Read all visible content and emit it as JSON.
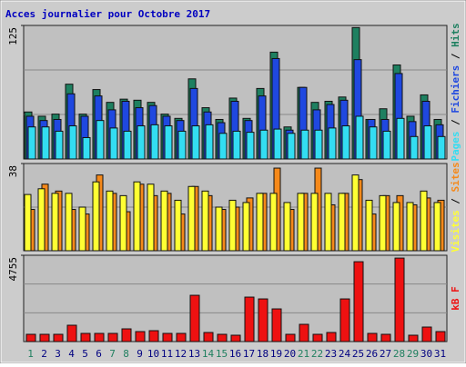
{
  "title": "Acces journalier pour Octobre 2017",
  "categories": [
    "1",
    "2",
    "3",
    "4",
    "5",
    "6",
    "7",
    "8",
    "9",
    "10",
    "11",
    "12",
    "13",
    "14",
    "15",
    "16",
    "17",
    "18",
    "19",
    "20",
    "21",
    "22",
    "23",
    "24",
    "25",
    "26",
    "27",
    "28",
    "29",
    "30",
    "31"
  ],
  "weekend": [
    true,
    false,
    false,
    false,
    false,
    false,
    true,
    true,
    false,
    false,
    false,
    false,
    false,
    true,
    true,
    false,
    false,
    false,
    false,
    false,
    true,
    true,
    false,
    false,
    false,
    false,
    false,
    true,
    true,
    false,
    false
  ],
  "weekend_color": "#208060",
  "weekday_color": "#000080",
  "legend_separator": "/",
  "chart_data": [
    {
      "type": "bar",
      "ylim": [
        0,
        125
      ],
      "yticks": [
        125
      ],
      "grid_divisions": 3,
      "series": [
        {
          "name": "Hits",
          "color": "#1e8060",
          "values": [
            44,
            40,
            42,
            70,
            42,
            65,
            53,
            56,
            55,
            53,
            42,
            38,
            75,
            48,
            37,
            57,
            38,
            66,
            100,
            30,
            67,
            53,
            54,
            58,
            123,
            37,
            47,
            88,
            40,
            60,
            37
          ]
        },
        {
          "name": "Fichiers",
          "color": "#1f48e0",
          "values": [
            40,
            36,
            37,
            61,
            40,
            59,
            46,
            54,
            48,
            50,
            40,
            36,
            66,
            44,
            34,
            54,
            36,
            59,
            94,
            27,
            67,
            46,
            51,
            55,
            93,
            37,
            37,
            80,
            35,
            54,
            32
          ]
        },
        {
          "name": "Pages",
          "color": "#33ddf2",
          "values": [
            30,
            30,
            26,
            31,
            20,
            36,
            29,
            26,
            31,
            32,
            31,
            26,
            31,
            32,
            24,
            26,
            25,
            27,
            28,
            24,
            27,
            27,
            29,
            31,
            40,
            30,
            26,
            38,
            21,
            31,
            21
          ]
        }
      ]
    },
    {
      "type": "bar",
      "ylim": [
        0,
        38
      ],
      "yticks": [
        38
      ],
      "grid_divisions": 2,
      "series": [
        {
          "name": "Sites",
          "color": "#f5891a",
          "values": [
            18,
            29,
            26,
            18,
            16,
            33,
            25,
            17,
            29,
            24,
            25,
            16,
            28,
            24,
            18,
            19,
            23,
            25,
            36,
            18,
            25,
            36,
            20,
            25,
            31,
            16,
            24,
            24,
            20,
            23,
            22
          ]
        },
        {
          "name": "Visites",
          "color": "#ffff33",
          "values": [
            24.5,
            27,
            25,
            25,
            19,
            30,
            26,
            24,
            30,
            29,
            26,
            22,
            28,
            26,
            19,
            22,
            21,
            25,
            25,
            21,
            25,
            25,
            25,
            25,
            33,
            22,
            24,
            21,
            21,
            26,
            21
          ]
        }
      ]
    },
    {
      "type": "bar",
      "ylim": [
        0,
        4755
      ],
      "yticks": [
        4755
      ],
      "grid_divisions": 3,
      "series": [
        {
          "name": "kB F",
          "color": "#ee1111",
          "values": [
            400,
            400,
            400,
            900,
            450,
            450,
            450,
            700,
            550,
            600,
            450,
            450,
            2550,
            500,
            400,
            350,
            2450,
            2350,
            1800,
            400,
            950,
            400,
            500,
            2350,
            4400,
            450,
            400,
            4600,
            350,
            800,
            550
          ]
        }
      ]
    }
  ]
}
